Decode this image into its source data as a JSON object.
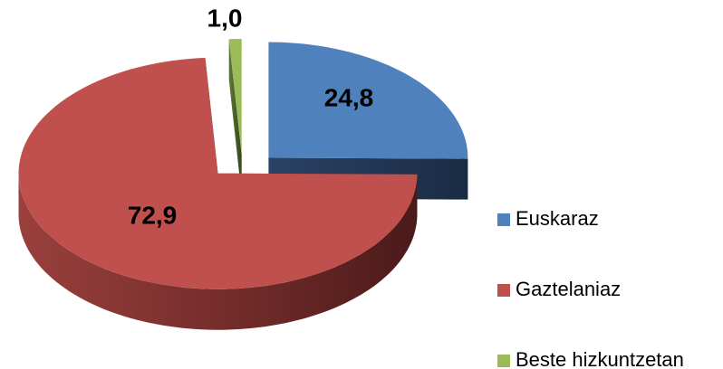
{
  "chart_data": {
    "type": "pie",
    "categories": [
      "Euskaraz",
      "Gaztelaniaz",
      "Beste hizkuntzetan"
    ],
    "values": [
      24.8,
      72.9,
      1.0
    ],
    "value_labels": [
      "24,8",
      "72,9",
      "1,0"
    ],
    "colors": [
      "#4f81bd",
      "#c0504d",
      "#9bbb59"
    ],
    "legend": "right"
  }
}
